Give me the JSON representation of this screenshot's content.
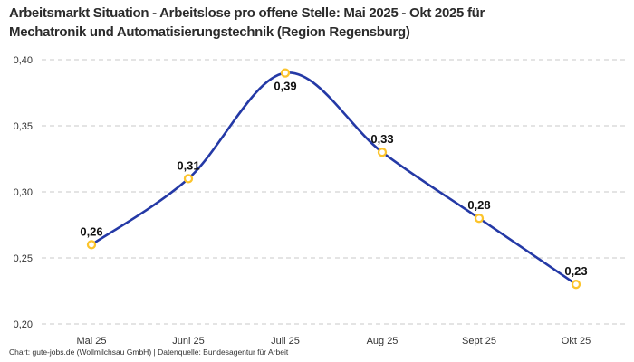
{
  "header": {
    "title_lines": [
      "Arbeitsmarkt Situation - Arbeitslose pro offene Stelle: Mai 2025 - Okt 2025 für",
      "Mechatronik und Automatisierungstechnik (Region Regensburg)"
    ]
  },
  "footer": {
    "credit": "Chart: gute-jobs.de (Wollmilchsau GmbH) | Datenquelle: Bundesagentur für Arbeit"
  },
  "chart_data": {
    "type": "line",
    "title": "Arbeitsmarkt Situation - Arbeitslose pro offene Stelle: Mai 2025 - Okt 2025 für Mechatronik und Automatisierungstechnik (Region Regensburg)",
    "categories": [
      "Mai 25",
      "Juni 25",
      "Juli 25",
      "Aug 25",
      "Sept 25",
      "Okt 25"
    ],
    "values": [
      0.26,
      0.31,
      0.39,
      0.33,
      0.28,
      0.23
    ],
    "point_labels": [
      "0,26",
      "0,31",
      "0,39",
      "0,33",
      "0,28",
      "0,23"
    ],
    "point_label_positions": [
      "above",
      "above",
      "below",
      "above",
      "above",
      "above"
    ],
    "xlabel": "",
    "ylabel": "",
    "ylim": [
      0.2,
      0.4
    ],
    "yticks": [
      0.2,
      0.25,
      0.3,
      0.35,
      0.4
    ],
    "ytick_labels": [
      "0,20",
      "0,25",
      "0,30",
      "0,35",
      "0,40"
    ],
    "grid": "dashed-horizontal",
    "legend": "none",
    "line_smoothing": "spline",
    "colors": {
      "line": "#2439a6",
      "marker_stroke": "#fcc42c",
      "marker_fill": "#ffffff",
      "grid": "#c9c9c9",
      "tick_text": "#333333",
      "point_label_text": "#111111",
      "title_text": "#2b2b2b",
      "background": "#ffffff"
    }
  }
}
